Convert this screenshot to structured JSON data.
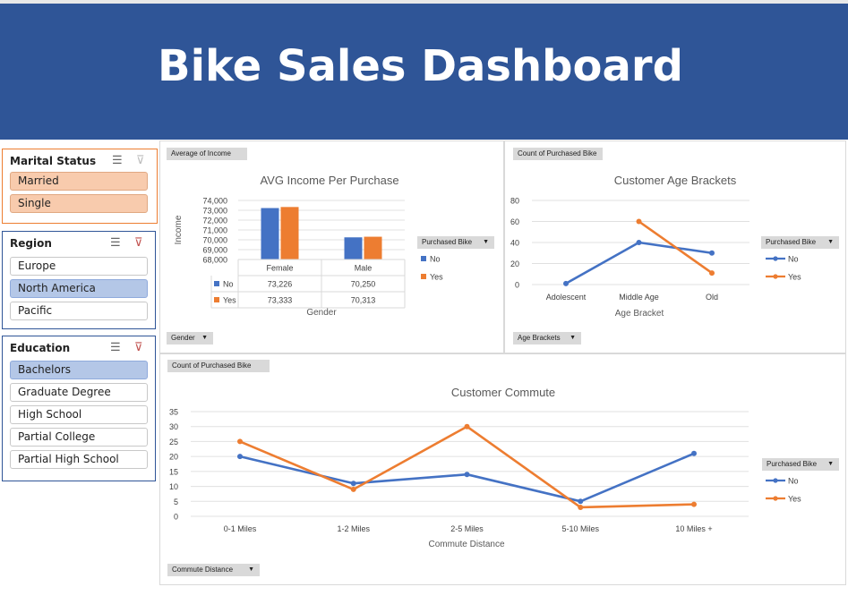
{
  "dashboard": {
    "title": "Bike Sales Dashboard"
  },
  "slicers": {
    "marital": {
      "title": "Marital Status",
      "items": [
        "Married",
        "Single"
      ],
      "selected": [
        "Married",
        "Single"
      ]
    },
    "region": {
      "title": "Region",
      "items": [
        "Europe",
        "North America",
        "Pacific"
      ],
      "selected": [
        "North America"
      ]
    },
    "education": {
      "title": "Education",
      "items": [
        "Bachelors",
        "Graduate Degree",
        "High School",
        "Partial College",
        "Partial High School"
      ],
      "selected": [
        "Bachelors"
      ]
    }
  },
  "colors": {
    "banner": "#2f5597",
    "no": "#4472c4",
    "yes": "#ed7d31",
    "marital_sel": "#f8cbad",
    "blue_sel": "#b4c7e7",
    "marital_border": "#ed7d31",
    "blue_border": "#2f5597"
  },
  "pivot_buttons": {
    "income_value": "Average of Income",
    "income_axis": "Gender",
    "age_value": "Count of Purchased Bike",
    "age_axis": "Age Brackets",
    "commute_value": "Count of Purchased Bike",
    "commute_axis": "Commute Distance",
    "legend_field": "Purchased Bike"
  },
  "chart_data": [
    {
      "type": "bar",
      "title": "AVG Income Per Purchase",
      "xlabel": "Gender",
      "ylabel": "Income",
      "categories": [
        "Female",
        "Male"
      ],
      "series": [
        {
          "name": "No",
          "values": [
            73226,
            70250
          ],
          "labels": [
            "73,226",
            "70,250"
          ]
        },
        {
          "name": "Yes",
          "values": [
            73333,
            70313
          ],
          "labels": [
            "73,333",
            "70,313"
          ]
        }
      ],
      "ylim": [
        68000,
        74000
      ],
      "yticks": [
        "68,000",
        "69,000",
        "70,000",
        "71,000",
        "72,000",
        "73,000",
        "74,000"
      ],
      "data_table": true,
      "legend": "right",
      "grid": true
    },
    {
      "type": "line",
      "title": "Customer Age Brackets",
      "xlabel": "Age Bracket",
      "ylabel": "",
      "categories": [
        "Adolescent",
        "Middle Age",
        "Old"
      ],
      "series": [
        {
          "name": "No",
          "values": [
            1,
            40,
            30
          ]
        },
        {
          "name": "Yes",
          "values": [
            null,
            60,
            11
          ]
        }
      ],
      "ylim": [
        0,
        80
      ],
      "yticks": [
        "0",
        "20",
        "40",
        "60",
        "80"
      ],
      "legend": "right",
      "grid": true
    },
    {
      "type": "line",
      "title": "Customer Commute",
      "xlabel": "Commute Distance",
      "ylabel": "",
      "categories": [
        "0-1 Miles",
        "1-2 Miles",
        "2-5 Miles",
        "5-10 Miles",
        "10 Miles +"
      ],
      "series": [
        {
          "name": "No",
          "values": [
            20,
            11,
            14,
            5,
            21
          ]
        },
        {
          "name": "Yes",
          "values": [
            25,
            9,
            30,
            3,
            4
          ]
        }
      ],
      "ylim": [
        0,
        35
      ],
      "yticks": [
        "0",
        "5",
        "10",
        "15",
        "20",
        "25",
        "30",
        "35"
      ],
      "legend": "right",
      "grid": true
    }
  ]
}
